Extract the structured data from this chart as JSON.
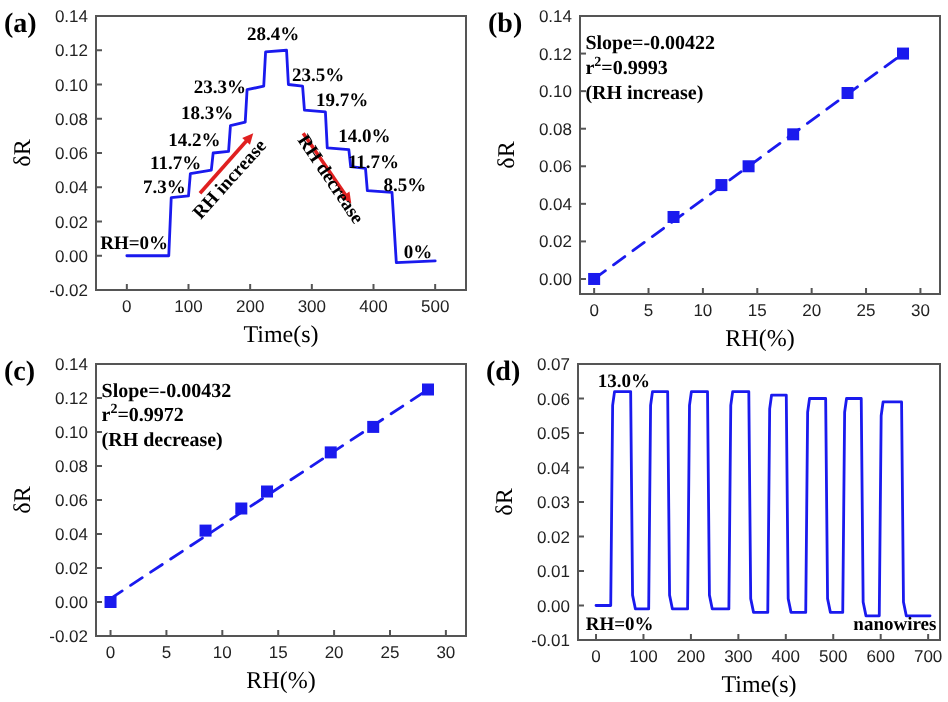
{
  "chart_data": [
    {
      "type": "line",
      "title": "(a)",
      "xlabel": "Time(s)",
      "ylabel": "δR",
      "xlim": [
        -50,
        550
      ],
      "ylim": [
        -0.02,
        0.14
      ],
      "xticks": [
        0,
        100,
        200,
        300,
        400,
        500
      ],
      "yticks": [
        {
          "value": -0.02,
          "label": "-0.02"
        },
        {
          "value": 0,
          "label": "0.00"
        },
        {
          "value": 0.02,
          "label": "0.02"
        },
        {
          "value": 0.04,
          "label": "0.04"
        },
        {
          "value": 0.06,
          "label": "0.06"
        },
        {
          "value": 0.08,
          "label": "0.08"
        },
        {
          "value": 0.1,
          "label": "0.10"
        },
        {
          "value": 0.12,
          "label": "0.12"
        },
        {
          "value": 0.14,
          "label": "0.14"
        }
      ],
      "series": [
        {
          "color": "#1a1aee",
          "x": [
            0,
            68,
            72,
            100,
            103,
            137,
            140,
            165,
            168,
            192,
            195,
            222,
            225,
            259,
            262,
            285,
            288,
            322,
            325,
            360,
            363,
            387,
            390,
            430,
            437,
            500
          ],
          "values": [
            0,
            0,
            0.034,
            0.035,
            0.048,
            0.05,
            0.06,
            0.061,
            0.076,
            0.078,
            0.097,
            0.099,
            0.119,
            0.12,
            0.1,
            0.099,
            0.085,
            0.084,
            0.063,
            0.062,
            0.052,
            0.051,
            0.038,
            0.037,
            -0.004,
            -0.003
          ]
        }
      ],
      "annotations": [
        "RH increase",
        "RH decrease",
        "RH=0%",
        "7.3%",
        "11.7%",
        "14.2%",
        "18.3%",
        "23.3%",
        "28.4%",
        "23.5%",
        "19.7%",
        "14.0%",
        "11.7%",
        "8.5%",
        "0%"
      ]
    },
    {
      "type": "scatter",
      "title": "(b)",
      "xlabel": "RH(%)",
      "ylabel": "δR",
      "xlim": [
        -1.3,
        31.8
      ],
      "ylim": [
        -0.008,
        0.14
      ],
      "xticks": [
        0,
        5,
        10,
        15,
        20,
        25,
        30
      ],
      "yticks": [
        {
          "value": 0,
          "label": "0.00"
        },
        {
          "value": 0.02,
          "label": "0.02"
        },
        {
          "value": 0.04,
          "label": "0.04"
        },
        {
          "value": 0.06,
          "label": "0.06"
        },
        {
          "value": 0.08,
          "label": "0.08"
        },
        {
          "value": 0.1,
          "label": "0.10"
        },
        {
          "value": 0.12,
          "label": "0.12"
        },
        {
          "value": 0.14,
          "label": "0.14"
        }
      ],
      "series": [
        {
          "color": "#1a1aee",
          "marker": "square",
          "x": [
            0,
            7.3,
            11.7,
            14.2,
            18.3,
            23.3,
            28.4
          ],
          "values": [
            0,
            0.033,
            0.05,
            0.06,
            0.077,
            0.099,
            0.12
          ]
        },
        {
          "type": "line",
          "line_style": "dashed",
          "color": "#1a1aee",
          "x": [
            0,
            28.4
          ],
          "values": [
            0,
            0.12
          ]
        }
      ],
      "annotations": [
        "Slope=-0.00422",
        "r$^{2}$=0.9993",
        "(RH increase)"
      ]
    },
    {
      "type": "scatter",
      "title": "(c)",
      "xlabel": "RH(%)",
      "ylabel": "δR",
      "xlim": [
        -1.3,
        31.8
      ],
      "ylim": [
        -0.02,
        0.14
      ],
      "xticks": [
        0,
        5,
        10,
        15,
        20,
        25,
        30
      ],
      "yticks": [
        {
          "value": -0.02,
          "label": "-0.02"
        },
        {
          "value": 0,
          "label": "0.00"
        },
        {
          "value": 0.02,
          "label": "0.02"
        },
        {
          "value": 0.04,
          "label": "0.04"
        },
        {
          "value": 0.06,
          "label": "0.06"
        },
        {
          "value": 0.08,
          "label": "0.08"
        },
        {
          "value": 0.1,
          "label": "0.10"
        },
        {
          "value": 0.12,
          "label": "0.12"
        },
        {
          "value": 0.14,
          "label": "0.14"
        }
      ],
      "series": [
        {
          "color": "#1a1aee",
          "marker": "square",
          "x": [
            0,
            8.5,
            11.7,
            14,
            19.7,
            23.5,
            28.4
          ],
          "values": [
            0,
            0.042,
            0.055,
            0.065,
            0.088,
            0.103,
            0.125
          ]
        },
        {
          "type": "line",
          "line_style": "dashed",
          "color": "#1a1aee",
          "x": [
            0,
            28.4
          ],
          "values": [
            0.002,
            0.125
          ]
        }
      ],
      "annotations": [
        "Slope=-0.00432",
        "r$^{2}$=0.9972",
        "(RH decrease)"
      ]
    },
    {
      "type": "line",
      "title": "(d)",
      "xlabel": "Time(s)",
      "ylabel": "δR",
      "xlim": [
        -38,
        725
      ],
      "ylim": [
        -0.01,
        0.07
      ],
      "xticks": [
        0,
        100,
        200,
        300,
        400,
        500,
        600,
        700
      ],
      "yticks": [
        {
          "value": -0.01,
          "label": "-0.01"
        },
        {
          "value": 0,
          "label": "0.00"
        },
        {
          "value": 0.01,
          "label": "0.01"
        },
        {
          "value": 0.02,
          "label": "0.02"
        },
        {
          "value": 0.03,
          "label": "0.03"
        },
        {
          "value": 0.04,
          "label": "0.04"
        },
        {
          "value": 0.05,
          "label": "0.05"
        },
        {
          "value": 0.06,
          "label": "0.06"
        },
        {
          "value": 0.07,
          "label": "0.07"
        }
      ],
      "series": [
        {
          "color": "#1a1aee",
          "x": [
            0,
            31,
            35,
            39,
            73,
            77,
            83,
            111,
            115,
            119,
            151,
            155,
            161,
            193,
            197,
            201,
            235,
            239,
            245,
            280,
            284,
            288,
            322,
            326,
            332,
            362,
            366,
            370,
            401,
            405,
            411,
            442,
            446,
            450,
            484,
            488,
            494,
            520,
            524,
            528,
            559,
            563,
            569,
            597,
            601,
            605,
            644,
            648,
            654,
            704
          ],
          "values": [
            0,
            0,
            0.058,
            0.062,
            0.062,
            0.003,
            -0.001,
            -0.001,
            0.058,
            0.062,
            0.062,
            0.003,
            -0.001,
            -0.001,
            0.058,
            0.062,
            0.062,
            0.003,
            -0.001,
            -0.001,
            0.058,
            0.062,
            0.062,
            0.002,
            -0.002,
            -0.002,
            0.057,
            0.061,
            0.061,
            0.002,
            -0.002,
            -0.002,
            0.056,
            0.06,
            0.06,
            0.002,
            -0.002,
            -0.002,
            0.056,
            0.06,
            0.06,
            0.001,
            -0.003,
            -0.003,
            0.055,
            0.059,
            0.059,
            0.001,
            -0.003,
            -0.003
          ]
        }
      ],
      "annotations": [
        "13.0%",
        "RH=0%",
        "nanowires"
      ]
    }
  ]
}
